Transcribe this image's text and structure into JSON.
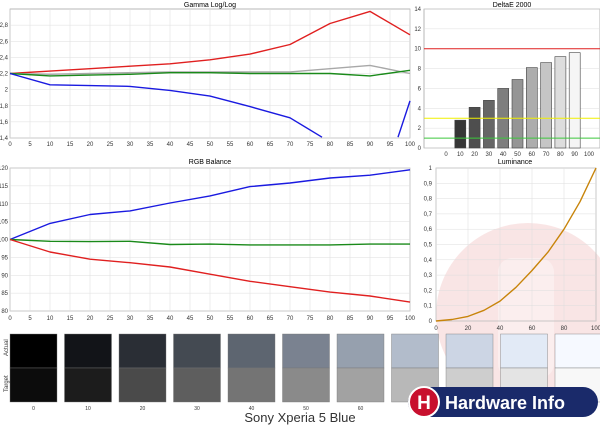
{
  "caption": "Sony Xperia 5 Blue",
  "watermark": {
    "badge": "H",
    "text": "Hardware Info"
  },
  "colors": {
    "red": "#e02020",
    "green": "#1a8a1a",
    "blue": "#1a1ae0",
    "gray": "#a8a8a8",
    "orange": "#c8840a",
    "yellow": "#f0f000",
    "lime": "#3cc83c",
    "brand": "#c8102e",
    "navy": "#1a2a6a"
  },
  "chart_data": [
    {
      "type": "line",
      "title": "Gamma Log/Log",
      "x": [
        0,
        5,
        10,
        15,
        20,
        25,
        30,
        35,
        40,
        45,
        50,
        55,
        60,
        65,
        70,
        75,
        80,
        85,
        90,
        95,
        100
      ],
      "xlim": [
        0,
        100
      ],
      "ylim": [
        1.4,
        3.0
      ],
      "yticks": [
        1.4,
        1.6,
        1.8,
        2,
        2.2,
        2.4,
        2.6,
        2.8
      ],
      "ytick_labels": [
        "1,4",
        "1,6",
        "1,8",
        "2",
        "2,2",
        "2,4",
        "2,6",
        "2,8"
      ],
      "series": [
        {
          "color": "red",
          "points": [
            [
              0,
              2.2
            ],
            [
              10,
              2.23
            ],
            [
              20,
              2.26
            ],
            [
              30,
              2.29
            ],
            [
              40,
              2.32
            ],
            [
              50,
              2.37
            ],
            [
              60,
              2.44
            ],
            [
              70,
              2.56
            ],
            [
              80,
              2.82
            ],
            [
              90,
              2.97
            ],
            [
              100,
              2.68
            ]
          ]
        },
        {
          "color": "gray",
          "points": [
            [
              0,
              2.2
            ],
            [
              10,
              2.19
            ],
            [
              20,
              2.2
            ],
            [
              30,
              2.21
            ],
            [
              40,
              2.22
            ],
            [
              50,
              2.22
            ],
            [
              60,
              2.22
            ],
            [
              70,
              2.22
            ],
            [
              80,
              2.26
            ],
            [
              90,
              2.3
            ],
            [
              100,
              2.2
            ]
          ]
        },
        {
          "color": "green",
          "points": [
            [
              0,
              2.2
            ],
            [
              10,
              2.17
            ],
            [
              20,
              2.18
            ],
            [
              30,
              2.19
            ],
            [
              40,
              2.21
            ],
            [
              50,
              2.21
            ],
            [
              60,
              2.2
            ],
            [
              70,
              2.2
            ],
            [
              80,
              2.2
            ],
            [
              90,
              2.17
            ],
            [
              100,
              2.24
            ]
          ]
        },
        {
          "color": "blue",
          "points": [
            [
              0,
              2.2
            ],
            [
              10,
              2.06
            ],
            [
              20,
              2.05
            ],
            [
              30,
              2.04
            ],
            [
              40,
              1.99
            ],
            [
              50,
              1.92
            ],
            [
              60,
              1.79
            ],
            [
              70,
              1.65
            ],
            [
              78,
              1.41
            ]
          ]
        },
        {
          "color": "blue",
          "points": [
            [
              97,
              1.41
            ],
            [
              100,
              1.86
            ]
          ]
        }
      ]
    },
    {
      "type": "bar",
      "title": "DeltaE 2000",
      "categories": [
        0,
        10,
        20,
        30,
        40,
        50,
        60,
        70,
        80,
        90
      ],
      "values": [
        0,
        2.8,
        4.1,
        4.8,
        6.0,
        6.9,
        8.1,
        8.6,
        9.2,
        9.6
      ],
      "xlim": [
        0,
        100
      ],
      "ylim": [
        0,
        14
      ],
      "yticks": [
        0,
        2,
        4,
        6,
        8,
        10,
        12,
        14
      ],
      "reference_lines": [
        {
          "y": 10,
          "color": "red"
        },
        {
          "y": 3,
          "color": "yellow"
        },
        {
          "y": 1,
          "color": "lime"
        }
      ]
    },
    {
      "type": "line",
      "title": "RGB Balance",
      "x": [
        0,
        5,
        10,
        15,
        20,
        25,
        30,
        35,
        40,
        45,
        50,
        55,
        60,
        65,
        70,
        75,
        80,
        85,
        90,
        95,
        100
      ],
      "xlim": [
        0,
        100
      ],
      "ylim": [
        80,
        120
      ],
      "yticks": [
        80,
        85,
        90,
        95,
        100,
        105,
        110,
        115,
        120
      ],
      "series": [
        {
          "color": "blue",
          "points": [
            [
              0,
              100
            ],
            [
              10,
              104.5
            ],
            [
              20,
              107
            ],
            [
              30,
              108
            ],
            [
              40,
              110.2
            ],
            [
              50,
              112.2
            ],
            [
              60,
              114.8
            ],
            [
              70,
              115.8
            ],
            [
              80,
              117.2
            ],
            [
              90,
              118
            ],
            [
              100,
              119.5
            ]
          ]
        },
        {
          "color": "green",
          "points": [
            [
              0,
              100
            ],
            [
              10,
              99.5
            ],
            [
              20,
              99.4
            ],
            [
              30,
              99.5
            ],
            [
              40,
              98.6
            ],
            [
              50,
              98.7
            ],
            [
              60,
              98.5
            ],
            [
              70,
              98.5
            ],
            [
              80,
              98.5
            ],
            [
              90,
              98.7
            ],
            [
              100,
              98.7
            ]
          ]
        },
        {
          "color": "red",
          "points": [
            [
              0,
              100
            ],
            [
              10,
              96.5
            ],
            [
              20,
              94.5
            ],
            [
              30,
              93.5
            ],
            [
              40,
              92.3
            ],
            [
              50,
              90.3
            ],
            [
              60,
              88.3
            ],
            [
              70,
              86.8
            ],
            [
              80,
              85.3
            ],
            [
              90,
              84.2
            ],
            [
              100,
              82.5
            ]
          ]
        }
      ]
    },
    {
      "type": "line",
      "title": "Luminance",
      "x": [
        0,
        20,
        40,
        60,
        80,
        100
      ],
      "xlim": [
        0,
        100
      ],
      "ylim": [
        0,
        1
      ],
      "yticks": [
        0,
        0.1,
        0.2,
        0.3,
        0.4,
        0.5,
        0.6,
        0.7,
        0.8,
        0.9,
        1
      ],
      "ytick_labels": [
        "0",
        "0,1",
        "0,2",
        "0,3",
        "0,4",
        "0,5",
        "0,6",
        "0,7",
        "0,8",
        "0,9",
        "1"
      ],
      "series": [
        {
          "color": "orange",
          "points": [
            [
              0,
              0
            ],
            [
              10,
              0.01
            ],
            [
              20,
              0.03
            ],
            [
              30,
              0.07
            ],
            [
              40,
              0.13
            ],
            [
              50,
              0.22
            ],
            [
              60,
              0.33
            ],
            [
              70,
              0.45
            ],
            [
              80,
              0.6
            ],
            [
              90,
              0.78
            ],
            [
              100,
              1.0
            ]
          ]
        }
      ]
    },
    {
      "type": "table",
      "title": "",
      "row_labels": [
        "Actual",
        "Target"
      ],
      "levels": [
        0,
        10,
        20,
        30,
        40,
        50,
        60,
        70,
        80,
        90,
        100
      ],
      "level_labels": [
        "0",
        "10",
        "20",
        "30",
        "40",
        "50",
        "60",
        "",
        "",
        "",
        ""
      ],
      "actual_colors": [
        "#000000",
        "#121418",
        "#2a2e35",
        "#444a52",
        "#5d6570",
        "#7a8290",
        "#96a0ae",
        "#b2bccb",
        "#ccd5e4",
        "#e2eaf6",
        "#f6f9ff"
      ],
      "target_colors": [
        "#0c0c0c",
        "#1c1c1c",
        "#4a4a4a",
        "#5e5e5e",
        "#747474",
        "#8a8a8a",
        "#a2a2a2",
        "#b8b8b8",
        "#cecece",
        "#e4e4e4",
        "#f8f8f8"
      ]
    }
  ]
}
